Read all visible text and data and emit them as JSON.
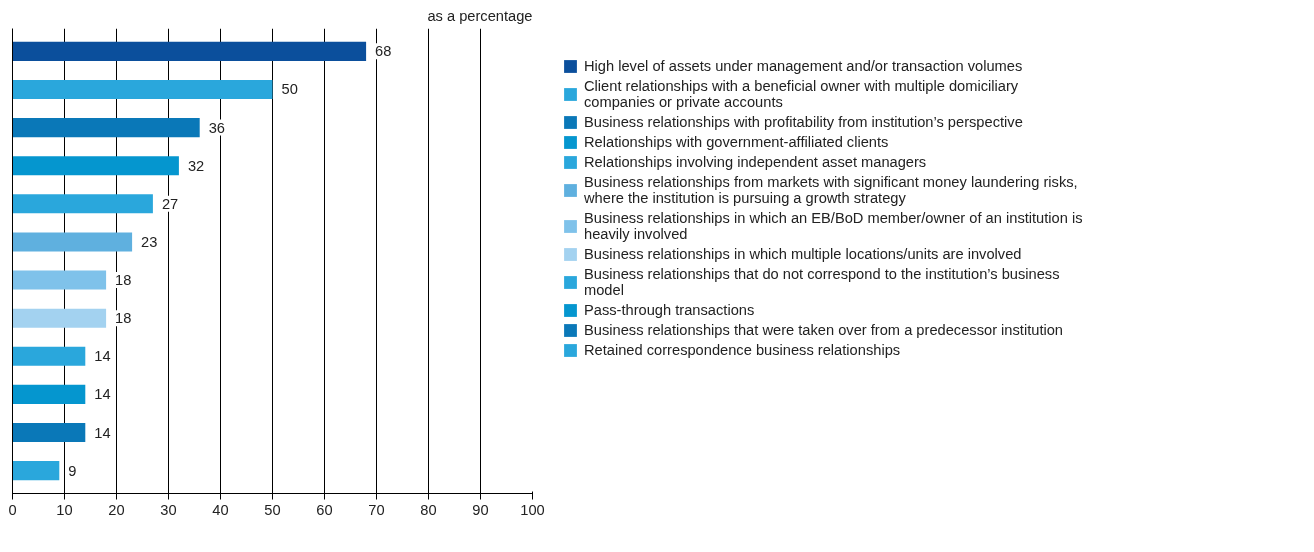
{
  "chart_data": {
    "type": "bar",
    "orientation": "horizontal",
    "title": "as a percentage",
    "categories": [
      null
    ],
    "series": [
      {
        "name": "High level of assets under management and/or transaction volumes",
        "color": "#0b4f9c",
        "values": [
          68
        ]
      },
      {
        "name": "Client relationships with a beneficial owner with multiple domiciliary companies or private accounts",
        "color": "#2aa7dc",
        "values": [
          50
        ]
      },
      {
        "name": "Business relationships with profitability from institution’s perspective",
        "color": "#0a78b8",
        "values": [
          36
        ]
      },
      {
        "name": "Relationships with government-affiliated clients",
        "color": "#0596cf",
        "values": [
          32
        ]
      },
      {
        "name": "Relationships involving independent asset managers",
        "color": "#2aa7dc",
        "values": [
          27
        ]
      },
      {
        "name": "Business relationships from markets with significant money laundering risks, where the institution is pursuing a growth strategy",
        "color": "#5fb0df",
        "values": [
          23
        ]
      },
      {
        "name": "Business relationships in which an EB/BoD member/owner of an institution is heavily involved",
        "color": "#7fc2ea",
        "values": [
          18
        ]
      },
      {
        "name": "Business relationships in which multiple locations/units are involved",
        "color": "#a3d2f0",
        "values": [
          18
        ]
      },
      {
        "name": "Business relationships that do not correspond to the institution’s business model",
        "color": "#2aa7dc",
        "values": [
          14
        ]
      },
      {
        "name": "Pass-through transactions",
        "color": "#0596cf",
        "values": [
          14
        ]
      },
      {
        "name": "Business relationships that were taken over from a predecessor institution",
        "color": "#0a78b8",
        "values": [
          14
        ]
      },
      {
        "name": "Retained correspondence business relationships",
        "color": "#2aa7dc",
        "values": [
          9
        ]
      }
    ],
    "xlim": [
      0,
      100
    ],
    "xticks": [
      0,
      10,
      20,
      30,
      40,
      50,
      60,
      70,
      80,
      90,
      100
    ],
    "grid": "x",
    "legend": "right",
    "tick_labels": "x",
    "data_labels": true
  }
}
